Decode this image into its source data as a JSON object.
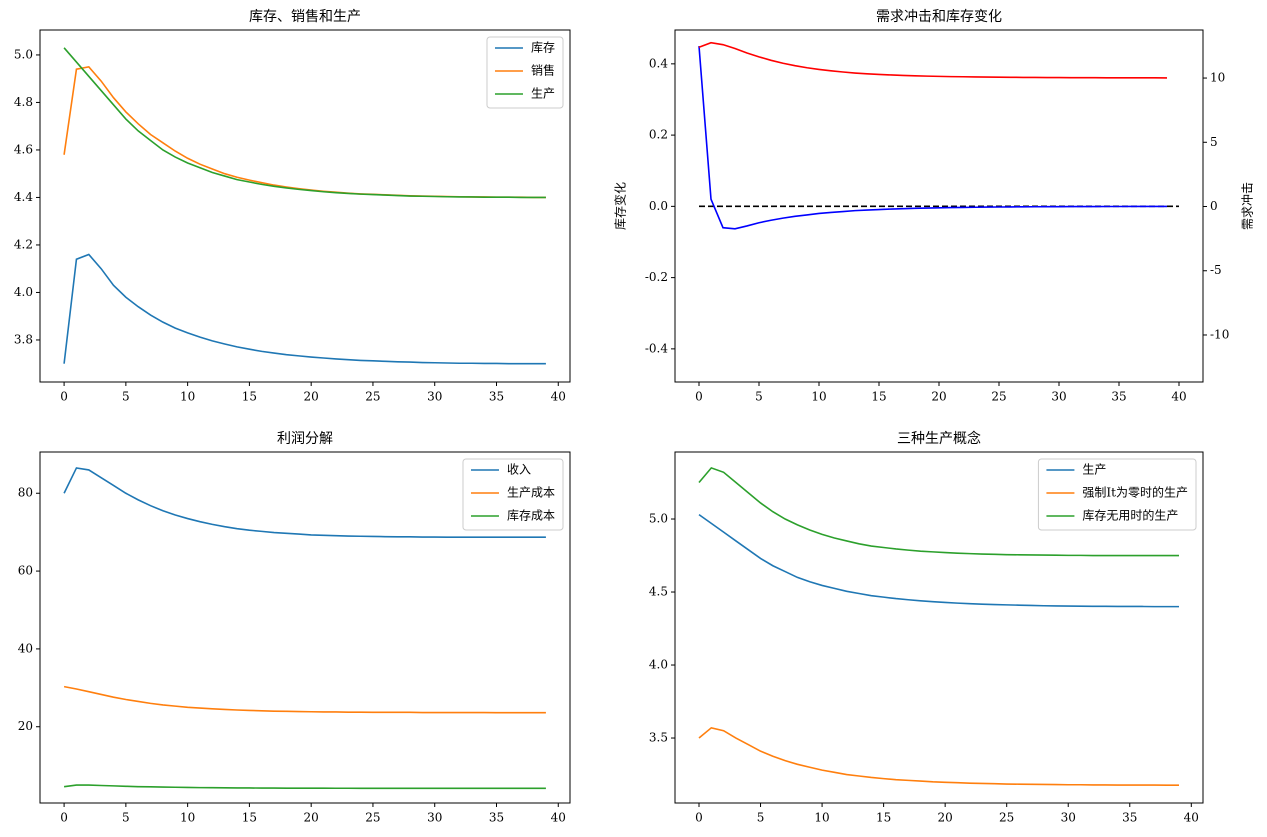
{
  "chart_data": [
    {
      "type": "line",
      "title": "库存、销售和生产",
      "x": [
        0,
        1,
        2,
        3,
        4,
        5,
        6,
        7,
        8,
        9,
        10,
        11,
        12,
        13,
        14,
        15,
        16,
        17,
        18,
        19,
        20,
        21,
        22,
        23,
        24,
        25,
        26,
        27,
        28,
        29,
        30,
        31,
        32,
        33,
        34,
        35,
        36,
        37,
        38,
        39
      ],
      "series": [
        {
          "name": "库存",
          "color": "#1f77b4",
          "values": [
            3.7,
            4.14,
            4.16,
            4.1,
            4.03,
            3.98,
            3.94,
            3.905,
            3.875,
            3.85,
            3.83,
            3.812,
            3.796,
            3.783,
            3.771,
            3.761,
            3.752,
            3.745,
            3.738,
            3.733,
            3.728,
            3.724,
            3.72,
            3.717,
            3.714,
            3.712,
            3.71,
            3.708,
            3.707,
            3.705,
            3.704,
            3.703,
            3.702,
            3.702,
            3.701,
            3.701,
            3.7,
            3.7,
            3.7,
            3.7
          ]
        },
        {
          "name": "销售",
          "color": "#ff7f0e",
          "values": [
            4.58,
            4.94,
            4.95,
            4.89,
            4.82,
            4.76,
            4.71,
            4.665,
            4.63,
            4.595,
            4.565,
            4.54,
            4.52,
            4.5,
            4.485,
            4.473,
            4.462,
            4.452,
            4.444,
            4.437,
            4.431,
            4.426,
            4.422,
            4.418,
            4.415,
            4.413,
            4.411,
            4.409,
            4.407,
            4.406,
            4.405,
            4.404,
            4.403,
            4.402,
            4.402,
            4.401,
            4.401,
            4.401,
            4.4,
            4.4
          ]
        },
        {
          "name": "生产",
          "color": "#2ca02c",
          "values": [
            5.03,
            4.97,
            4.91,
            4.85,
            4.79,
            4.73,
            4.68,
            4.64,
            4.6,
            4.57,
            4.545,
            4.525,
            4.505,
            4.49,
            4.475,
            4.465,
            4.455,
            4.447,
            4.44,
            4.434,
            4.429,
            4.424,
            4.42,
            4.417,
            4.414,
            4.412,
            4.41,
            4.408,
            4.406,
            4.405,
            4.404,
            4.403,
            4.402,
            4.402,
            4.401,
            4.401,
            4.401,
            4.4,
            4.4,
            4.4
          ]
        }
      ],
      "xlim": [
        -1.95,
        40.95
      ],
      "xticks": [
        0,
        5,
        10,
        15,
        20,
        25,
        30,
        35,
        40
      ],
      "ylim": [
        3.623,
        5.105
      ],
      "yticks": [
        3.8,
        {
          "value": 4.0,
          "label": "4.0"
        },
        4.2,
        4.4,
        4.6,
        4.8,
        {
          "value": 5.0,
          "label": "5.0"
        }
      ],
      "legend": "upper right"
    },
    {
      "type": "line",
      "title": "需求冲击和库存变化",
      "ylabel": "库存变化",
      "ylabel_color": "blue",
      "y2label": "需求冲击",
      "y2label_color": "red",
      "x": [
        0,
        1,
        2,
        3,
        4,
        5,
        6,
        7,
        8,
        9,
        10,
        11,
        12,
        13,
        14,
        15,
        16,
        17,
        18,
        19,
        20,
        21,
        22,
        23,
        24,
        25,
        26,
        27,
        28,
        29,
        30,
        31,
        32,
        33,
        34,
        35,
        36,
        37,
        38,
        39
      ],
      "series": [
        {
          "name": "库存变化",
          "color": "blue",
          "values": [
            0.45,
            0.02,
            -0.06,
            -0.063,
            -0.055,
            -0.046,
            -0.039,
            -0.033,
            -0.028,
            -0.024,
            -0.02,
            -0.017,
            -0.0145,
            -0.012,
            -0.0105,
            -0.009,
            -0.0075,
            -0.0065,
            -0.0055,
            -0.0047,
            -0.004,
            -0.0034,
            -0.0029,
            -0.0025,
            -0.0021,
            -0.0018,
            -0.0015,
            -0.0013,
            -0.0011,
            -0.0009,
            -0.0008,
            -0.0007,
            -0.0006,
            -0.0005,
            -0.0004,
            -0.0004,
            -0.0003,
            -0.0003,
            -0.0002,
            -0.0002
          ]
        },
        {
          "name": "需求冲击",
          "color": "red",
          "axis": "y2",
          "values": [
            12.4,
            12.75,
            12.6,
            12.3,
            11.95,
            11.65,
            11.38,
            11.15,
            10.96,
            10.8,
            10.67,
            10.56,
            10.47,
            10.39,
            10.33,
            10.28,
            10.24,
            10.2,
            10.17,
            10.15,
            10.13,
            10.11,
            10.1,
            10.09,
            10.08,
            10.07,
            10.06,
            10.05,
            10.05,
            10.04,
            10.04,
            10.03,
            10.03,
            10.03,
            10.02,
            10.02,
            10.02,
            10.02,
            10.02,
            10.01
          ]
        }
      ],
      "hline": {
        "x": [
          0,
          40
        ],
        "y": 0,
        "color": "black",
        "style": "dashed"
      },
      "xlim": [
        -2,
        42
      ],
      "xticks": [
        0,
        5,
        10,
        15,
        20,
        25,
        30,
        35,
        40
      ],
      "ylim": [
        -0.493,
        0.495
      ],
      "yticks": [
        -0.4,
        -0.2,
        {
          "value": 0.0,
          "label": "0.0"
        },
        0.2,
        0.4
      ],
      "y2lim": [
        -13.66,
        13.74
      ],
      "y2ticks": [
        -10,
        -5,
        0,
        5,
        10
      ]
    },
    {
      "type": "line",
      "title": "利润分解",
      "x": [
        0,
        1,
        2,
        3,
        4,
        5,
        6,
        7,
        8,
        9,
        10,
        11,
        12,
        13,
        14,
        15,
        16,
        17,
        18,
        19,
        20,
        21,
        22,
        23,
        24,
        25,
        26,
        27,
        28,
        29,
        30,
        31,
        32,
        33,
        34,
        35,
        36,
        37,
        38,
        39
      ],
      "series": [
        {
          "name": "收入",
          "color": "#1f77b4",
          "values": [
            80,
            86.5,
            86,
            84,
            82,
            80,
            78.3,
            76.8,
            75.5,
            74.4,
            73.5,
            72.7,
            72,
            71.4,
            70.9,
            70.5,
            70.2,
            69.9,
            69.7,
            69.5,
            69.3,
            69.2,
            69.1,
            69.0,
            68.95,
            68.9,
            68.85,
            68.8,
            68.8,
            68.75,
            68.75,
            68.7,
            68.7,
            68.7,
            68.7,
            68.7,
            68.7,
            68.7,
            68.7,
            68.7
          ]
        },
        {
          "name": "生产成本",
          "color": "#ff7f0e",
          "values": [
            30.3,
            29.7,
            29.0,
            28.3,
            27.6,
            27.0,
            26.5,
            26.0,
            25.6,
            25.3,
            25.0,
            24.8,
            24.6,
            24.45,
            24.3,
            24.2,
            24.1,
            24.0,
            23.95,
            23.9,
            23.85,
            23.8,
            23.8,
            23.75,
            23.75,
            23.7,
            23.7,
            23.7,
            23.7,
            23.65,
            23.65,
            23.65,
            23.65,
            23.65,
            23.65,
            23.6,
            23.6,
            23.6,
            23.6,
            23.6
          ]
        },
        {
          "name": "库存成本",
          "color": "#2ca02c",
          "values": [
            4.6,
            5.0,
            5.0,
            4.9,
            4.8,
            4.7,
            4.6,
            4.55,
            4.5,
            4.45,
            4.4,
            4.35,
            4.33,
            4.3,
            4.28,
            4.26,
            4.24,
            4.23,
            4.22,
            4.21,
            4.2,
            4.2,
            4.19,
            4.19,
            4.18,
            4.18,
            4.18,
            4.18,
            4.17,
            4.17,
            4.17,
            4.17,
            4.17,
            4.17,
            4.17,
            4.17,
            4.17,
            4.17,
            4.17,
            4.17
          ]
        }
      ],
      "xlim": [
        -1.95,
        40.95
      ],
      "xticks": [
        0,
        5,
        10,
        15,
        20,
        25,
        30,
        35,
        40
      ],
      "ylim": [
        0.4,
        90.6
      ],
      "yticks": [
        20,
        40,
        60,
        80
      ],
      "legend": "upper right"
    },
    {
      "type": "line",
      "title": "三种生产概念",
      "x": [
        0,
        1,
        2,
        3,
        4,
        5,
        6,
        7,
        8,
        9,
        10,
        11,
        12,
        13,
        14,
        15,
        16,
        17,
        18,
        19,
        20,
        21,
        22,
        23,
        24,
        25,
        26,
        27,
        28,
        29,
        30,
        31,
        32,
        33,
        34,
        35,
        36,
        37,
        38,
        39
      ],
      "series": [
        {
          "name": "生产",
          "color": "#1f77b4",
          "values": [
            5.03,
            4.97,
            4.91,
            4.85,
            4.79,
            4.73,
            4.68,
            4.64,
            4.6,
            4.57,
            4.545,
            4.525,
            4.505,
            4.49,
            4.475,
            4.465,
            4.455,
            4.447,
            4.44,
            4.434,
            4.429,
            4.424,
            4.42,
            4.417,
            4.414,
            4.412,
            4.41,
            4.408,
            4.406,
            4.405,
            4.404,
            4.403,
            4.402,
            4.402,
            4.401,
            4.401,
            4.401,
            4.4,
            4.4,
            4.4
          ]
        },
        {
          "name": "强制It为零时的生产",
          "color": "#ff7f0e",
          "values": [
            3.5,
            3.57,
            3.55,
            3.5,
            3.455,
            3.41,
            3.375,
            3.345,
            3.32,
            3.3,
            3.28,
            3.265,
            3.25,
            3.24,
            3.23,
            3.222,
            3.215,
            3.21,
            3.205,
            3.2,
            3.197,
            3.194,
            3.191,
            3.189,
            3.187,
            3.185,
            3.184,
            3.183,
            3.182,
            3.181,
            3.18,
            3.18,
            3.179,
            3.179,
            3.178,
            3.178,
            3.178,
            3.178,
            3.177,
            3.177
          ]
        },
        {
          "name": "库存无用时的生产",
          "color": "#2ca02c",
          "values": [
            5.25,
            5.35,
            5.32,
            5.25,
            5.18,
            5.11,
            5.05,
            5.0,
            4.96,
            4.925,
            4.895,
            4.87,
            4.85,
            4.83,
            4.815,
            4.805,
            4.795,
            4.787,
            4.78,
            4.775,
            4.77,
            4.766,
            4.763,
            4.76,
            4.758,
            4.756,
            4.755,
            4.754,
            4.753,
            4.752,
            4.751,
            4.751,
            4.75,
            4.75,
            4.75,
            4.75,
            4.75,
            4.75,
            4.75,
            4.75
          ]
        }
      ],
      "xlim": [
        -1.95,
        40.95
      ],
      "xticks": [
        0,
        5,
        10,
        15,
        20,
        25,
        30,
        35,
        40
      ],
      "ylim": [
        3.055,
        5.459
      ],
      "yticks": [
        3.5,
        {
          "value": 4.0,
          "label": "4.0"
        },
        4.5,
        {
          "value": 5.0,
          "label": "5.0"
        }
      ],
      "legend": "upper right"
    }
  ]
}
